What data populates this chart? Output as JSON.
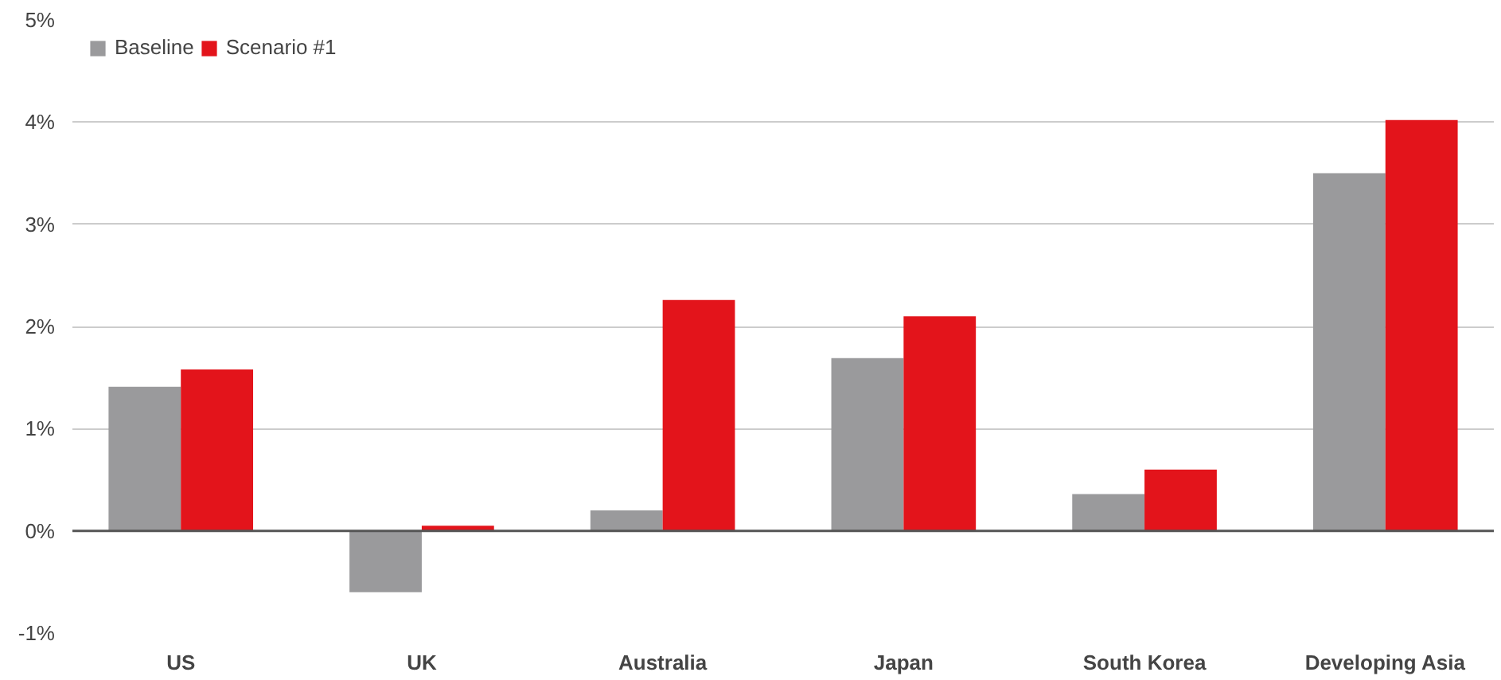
{
  "chart_data": {
    "type": "bar",
    "categories": [
      "US",
      "UK",
      "Australia",
      "Japan",
      "South Korea",
      "Developing Asia"
    ],
    "series": [
      {
        "name": "Baseline",
        "color": "#9a9a9c",
        "values": [
          1.41,
          -0.6,
          0.2,
          1.69,
          0.36,
          3.5
        ]
      },
      {
        "name": "Scenario #1",
        "color": "#e3141b",
        "values": [
          1.58,
          0.05,
          2.26,
          2.1,
          0.6,
          4.02
        ]
      }
    ],
    "ylim": [
      -1,
      5
    ],
    "yticks": [
      {
        "value": 5,
        "label": "5%"
      },
      {
        "value": 4,
        "label": "4%"
      },
      {
        "value": 3,
        "label": "3%"
      },
      {
        "value": 2,
        "label": "2%"
      },
      {
        "value": 1,
        "label": "1%"
      },
      {
        "value": 0,
        "label": "0%"
      },
      {
        "value": -1,
        "label": "-1%"
      }
    ],
    "grid": "y",
    "legend": "top left"
  }
}
